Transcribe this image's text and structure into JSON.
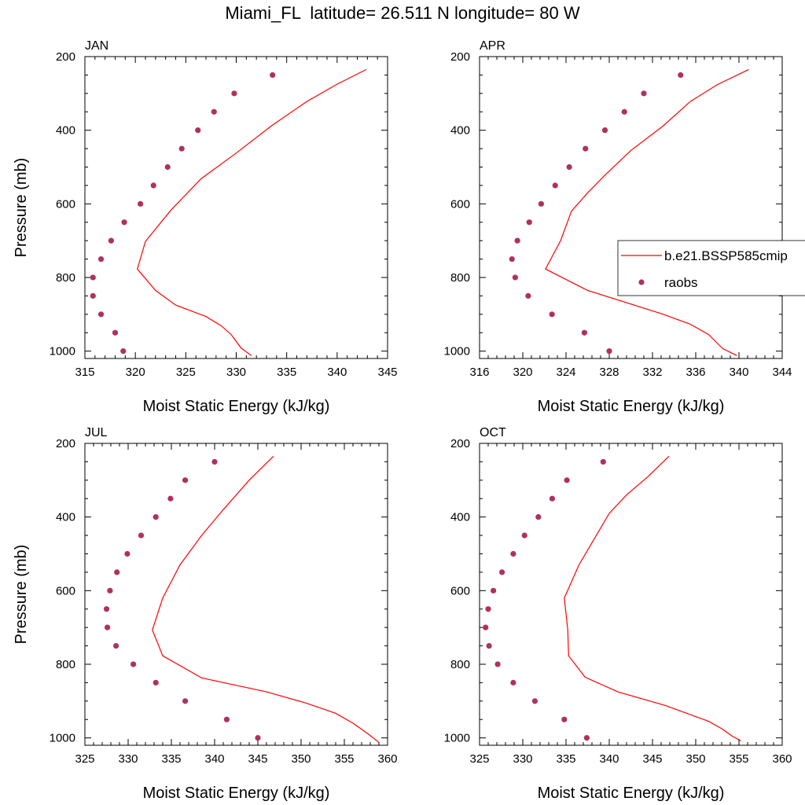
{
  "figure": {
    "title": "Miami_FL  latitude= 26.511 N longitude= 80 W",
    "model_color": "#ff0000",
    "obs_color": "#b03060"
  },
  "legend": {
    "model_label": "b.e21.BSSP585cmip",
    "obs_label": "raobs",
    "placement": "right of APR panel"
  },
  "chart_data": [
    {
      "type": "line",
      "title": "JAN",
      "xlabel": "Moist Static Energy (kJ/kg)",
      "ylabel": "Pressure (mb)",
      "xlim": [
        315,
        345
      ],
      "ylim": [
        200,
        1020
      ],
      "y_inverted": true,
      "xticks": [
        315,
        320,
        325,
        330,
        335,
        340,
        345
      ],
      "yticks": [
        200,
        400,
        600,
        800,
        1000
      ],
      "series": [
        {
          "name": "b.e21.BSSP585cmip",
          "style": "line",
          "x": [
            342.9,
            340.0,
            337.0,
            333.5,
            330.0,
            326.5,
            323.5,
            321.0,
            320.2,
            322.0,
            324.0,
            327.0,
            328.5,
            329.5,
            330.5,
            331.5
          ],
          "y": [
            235,
            275,
            322,
            388,
            462,
            532,
            618,
            702,
            777,
            835,
            875,
            906,
            931,
            955,
            992,
            1012
          ]
        },
        {
          "name": "raobs",
          "style": "markers",
          "x": [
            333.6,
            329.8,
            327.8,
            326.2,
            324.6,
            323.2,
            321.8,
            320.5,
            318.9,
            317.6,
            316.6,
            315.8,
            315.8,
            316.6,
            318.0,
            318.8
          ],
          "y": [
            250,
            300,
            350,
            400,
            450,
            500,
            550,
            600,
            650,
            700,
            750,
            800,
            850,
            900,
            950,
            1000
          ]
        }
      ]
    },
    {
      "type": "line",
      "title": "APR",
      "xlabel": "Moist Static Energy (kJ/kg)",
      "ylabel": "",
      "xlim": [
        316,
        344
      ],
      "ylim": [
        200,
        1020
      ],
      "y_inverted": true,
      "xticks": [
        316,
        320,
        324,
        328,
        332,
        336,
        340,
        344
      ],
      "yticks": [
        200,
        400,
        600,
        800,
        1000
      ],
      "series": [
        {
          "name": "b.e21.BSSP585cmip",
          "style": "line",
          "x": [
            340.9,
            338.0,
            335.5,
            333.0,
            330.0,
            327.5,
            326.0,
            324.5,
            323.5,
            322.1,
            326.0,
            333.0,
            335.5,
            337.2,
            338.5,
            339.8
          ],
          "y": [
            235,
            276,
            322,
            388,
            455,
            525,
            570,
            620,
            700,
            777,
            835,
            900,
            927,
            955,
            993,
            1012
          ]
        },
        {
          "name": "raobs",
          "style": "markers",
          "x": [
            334.6,
            331.2,
            329.4,
            327.6,
            325.8,
            324.3,
            323.0,
            321.7,
            320.6,
            319.5,
            319.0,
            319.3,
            320.5,
            322.7,
            325.7,
            328.0
          ],
          "y": [
            250,
            300,
            350,
            400,
            450,
            500,
            550,
            600,
            650,
            700,
            750,
            800,
            850,
            900,
            950,
            1000
          ]
        }
      ]
    },
    {
      "type": "line",
      "title": "JUL",
      "xlabel": "Moist Static Energy (kJ/kg)",
      "ylabel": "Pressure (mb)",
      "xlim": [
        325,
        360
      ],
      "ylim": [
        200,
        1020
      ],
      "y_inverted": true,
      "xticks": [
        325,
        330,
        335,
        340,
        345,
        350,
        355,
        360
      ],
      "yticks": [
        200,
        400,
        600,
        800,
        1000
      ],
      "series": [
        {
          "name": "b.e21.BSSP585cmip",
          "style": "line",
          "x": [
            346.8,
            344.0,
            341.0,
            338.5,
            336.0,
            334.0,
            332.8,
            334.0,
            338.5,
            346.0,
            350.5,
            354.0,
            356.0,
            357.8,
            359.0
          ],
          "y": [
            235,
            300,
            380,
            450,
            530,
            620,
            707,
            777,
            837,
            875,
            905,
            933,
            960,
            990,
            1012
          ]
        },
        {
          "name": "raobs",
          "style": "markers",
          "x": [
            340.0,
            336.6,
            334.9,
            333.2,
            331.5,
            329.9,
            328.7,
            327.9,
            327.5,
            327.6,
            328.6,
            330.6,
            333.2,
            336.6,
            341.4,
            345.0
          ],
          "y": [
            250,
            300,
            350,
            400,
            450,
            500,
            550,
            600,
            650,
            700,
            750,
            800,
            850,
            900,
            950,
            1000
          ]
        }
      ]
    },
    {
      "type": "line",
      "title": "OCT",
      "xlabel": "Moist Static Energy (kJ/kg)",
      "ylabel": "",
      "xlim": [
        325,
        360
      ],
      "ylim": [
        200,
        1020
      ],
      "y_inverted": true,
      "xticks": [
        325,
        330,
        335,
        340,
        345,
        350,
        355,
        360
      ],
      "yticks": [
        200,
        400,
        600,
        800,
        1000
      ],
      "series": [
        {
          "name": "b.e21.BSSP585cmip",
          "style": "line",
          "x": [
            346.9,
            344.5,
            342.0,
            340.0,
            338.5,
            337.5,
            336.5,
            334.8,
            335.2,
            335.3,
            337.2,
            341.0,
            346.5,
            351.5,
            353.0,
            354.2,
            355.2
          ],
          "y": [
            235,
            290,
            340,
            390,
            450,
            490,
            530,
            620,
            705,
            777,
            835,
            875,
            912,
            955,
            975,
            995,
            1008
          ]
        },
        {
          "name": "raobs",
          "style": "markers",
          "x": [
            339.3,
            335.1,
            333.4,
            331.8,
            330.2,
            328.9,
            327.6,
            326.6,
            326.0,
            325.7,
            326.1,
            327.1,
            328.9,
            331.4,
            334.8,
            337.4
          ],
          "y": [
            250,
            300,
            350,
            400,
            450,
            500,
            550,
            600,
            650,
            700,
            750,
            800,
            850,
            900,
            950,
            1000
          ]
        }
      ]
    }
  ]
}
